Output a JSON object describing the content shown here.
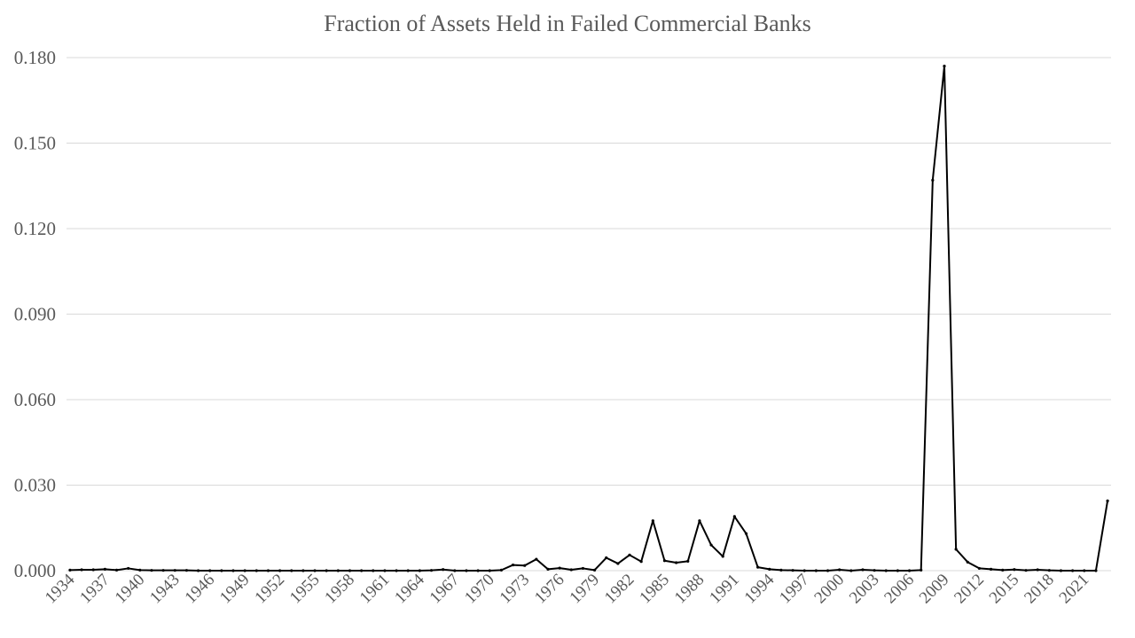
{
  "chart_data": {
    "type": "line",
    "title": "Fraction of Assets Held in Failed Commercial Banks",
    "xlabel": "",
    "ylabel": "",
    "ylim": [
      0,
      0.18
    ],
    "yticks": [
      "0.000",
      "0.030",
      "0.060",
      "0.090",
      "0.120",
      "0.150",
      "0.180"
    ],
    "xtick_labels": [
      "1934",
      "1937",
      "1940",
      "1943",
      "1946",
      "1949",
      "1952",
      "1955",
      "1958",
      "1961",
      "1964",
      "1967",
      "1970",
      "1973",
      "1976",
      "1979",
      "1982",
      "1985",
      "1988",
      "1991",
      "1994",
      "1997",
      "2000",
      "2003",
      "2006",
      "2009",
      "2012",
      "2015",
      "2018",
      "2021"
    ],
    "grid": true,
    "legend": "none",
    "x": [
      1934,
      1935,
      1936,
      1937,
      1938,
      1939,
      1940,
      1941,
      1942,
      1943,
      1944,
      1945,
      1946,
      1947,
      1948,
      1949,
      1950,
      1951,
      1952,
      1953,
      1954,
      1955,
      1956,
      1957,
      1958,
      1959,
      1960,
      1961,
      1962,
      1963,
      1964,
      1965,
      1966,
      1967,
      1968,
      1969,
      1970,
      1971,
      1972,
      1973,
      1974,
      1975,
      1976,
      1977,
      1978,
      1979,
      1980,
      1981,
      1982,
      1983,
      1984,
      1985,
      1986,
      1987,
      1988,
      1989,
      1990,
      1991,
      1992,
      1993,
      1994,
      1995,
      1996,
      1997,
      1998,
      1999,
      2000,
      2001,
      2002,
      2003,
      2004,
      2005,
      2006,
      2007,
      2008,
      2009,
      2010,
      2011,
      2012,
      2013,
      2014,
      2015,
      2016,
      2017,
      2018,
      2019,
      2020,
      2021,
      2022,
      2023
    ],
    "values": [
      0.0002,
      0.0003,
      0.0003,
      0.0005,
      0.0002,
      0.0008,
      0.0002,
      0.0001,
      0.0001,
      0.0001,
      0.0001,
      0.0,
      0.0,
      0.0,
      0.0,
      0.0,
      0.0,
      0.0,
      0.0,
      0.0,
      0.0,
      0.0,
      0.0,
      0.0,
      0.0,
      0.0,
      0.0,
      0.0,
      0.0,
      0.0,
      0.0,
      0.0001,
      0.0004,
      0.0,
      0.0,
      0.0,
      0.0,
      0.0002,
      0.002,
      0.0018,
      0.004,
      0.0005,
      0.0009,
      0.0003,
      0.0008,
      0.0002,
      0.0045,
      0.0025,
      0.0055,
      0.0032,
      0.0175,
      0.0035,
      0.0028,
      0.0033,
      0.0175,
      0.009,
      0.005,
      0.019,
      0.013,
      0.0012,
      0.0005,
      0.0002,
      0.0001,
      0.0,
      0.0,
      0.0,
      0.0003,
      0.0,
      0.0003,
      0.0001,
      0.0,
      0.0,
      0.0,
      0.0002,
      0.137,
      0.177,
      0.0075,
      0.003,
      0.0008,
      0.0005,
      0.0002,
      0.0004,
      0.0001,
      0.0003,
      0.0001,
      0.0,
      0.0,
      0.0,
      0.0,
      0.0245
    ]
  }
}
